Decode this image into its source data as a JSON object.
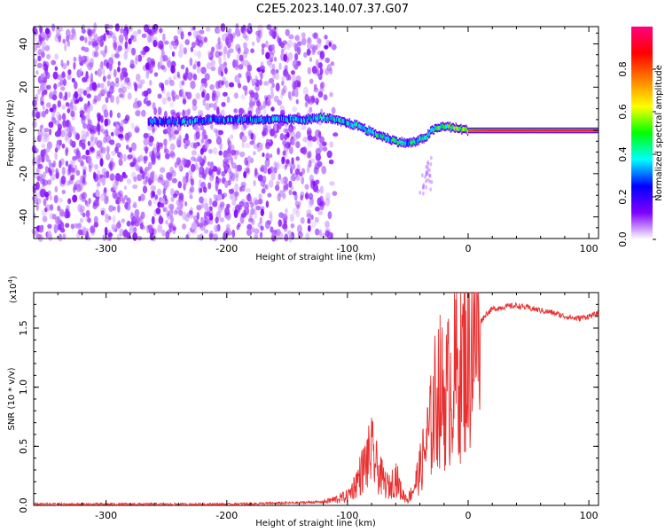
{
  "title": "C2E5.2023.140.07.37.G07",
  "chart_data": [
    {
      "type": "heatmap",
      "description_source": "spectrogram panel (top)",
      "xlabel": "Height of straight line (km)",
      "ylabel": "Frequency (Hz)",
      "xlim": [
        -360,
        108
      ],
      "ylim": [
        -50,
        48
      ],
      "xticks": [
        -300,
        -200,
        -100,
        0,
        100
      ],
      "yticks": [
        -40,
        -20,
        0,
        20,
        40
      ],
      "colorbar": {
        "label": "Normalized spectral amplitude",
        "range": [
          0.0,
          1.0
        ],
        "ticks": [
          "0.0",
          "0.2",
          "0.4",
          "0.6",
          "0.8"
        ],
        "colors": [
          "#ffffff",
          "#8000ff",
          "#0000ff",
          "#00ffff",
          "#00ff00",
          "#ffff00",
          "#ff8000",
          "#ff0000",
          "#ff0080"
        ]
      },
      "ridge": {
        "x": [
          -265,
          -240,
          -210,
          -180,
          -150,
          -135,
          -120,
          -105,
          -90,
          -80,
          -70,
          -60,
          -50,
          -42,
          -35,
          -30,
          -20,
          -10,
          0,
          20,
          50,
          108
        ],
        "y": [
          4,
          4,
          5,
          5,
          5,
          5,
          6,
          4,
          2,
          -1,
          -3,
          -5,
          -6,
          -5,
          -3,
          0,
          2,
          1,
          0,
          0,
          0,
          0
        ],
        "amplitude": [
          0.3,
          0.3,
          0.35,
          0.35,
          0.4,
          0.4,
          0.45,
          0.45,
          0.5,
          0.5,
          0.5,
          0.5,
          0.45,
          0.45,
          0.5,
          0.55,
          0.6,
          0.7,
          0.8,
          0.85,
          0.85,
          0.85
        ]
      },
      "noise_region_x": [
        -360,
        -130
      ]
    },
    {
      "type": "line",
      "description_source": "SNR panel (bottom)",
      "xlabel": "Height of straight line (km)",
      "ylabel": "SNR (10 * v/v)",
      "yscale_label": "(x10",
      "yscale_exp": "4",
      "xlim": [
        -360,
        108
      ],
      "ylim": [
        0,
        1.8
      ],
      "xticks": [
        -300,
        -200,
        -100,
        0,
        100
      ],
      "yticks": [
        "0.0",
        "0.5",
        "1.0",
        "1.5"
      ],
      "color": "#e83030",
      "x": [
        -360,
        -300,
        -200,
        -150,
        -120,
        -110,
        -100,
        -95,
        -90,
        -85,
        -80,
        -75,
        -70,
        -65,
        -60,
        -55,
        -50,
        -45,
        -40,
        -35,
        -30,
        -27,
        -25,
        -20,
        -15,
        -10,
        -5,
        0,
        5,
        10,
        15,
        20,
        30,
        40,
        50,
        60,
        70,
        80,
        90,
        100,
        108
      ],
      "y": [
        0.01,
        0.01,
        0.01,
        0.02,
        0.03,
        0.05,
        0.08,
        0.15,
        0.25,
        0.35,
        0.45,
        0.3,
        0.2,
        0.15,
        0.25,
        0.1,
        0.05,
        0.15,
        0.3,
        0.5,
        0.7,
        0.9,
        1.0,
        0.9,
        1.0,
        1.1,
        1.2,
        1.3,
        1.45,
        1.55,
        1.62,
        1.66,
        1.68,
        1.69,
        1.67,
        1.65,
        1.63,
        1.6,
        1.58,
        1.6,
        1.62
      ]
    }
  ]
}
